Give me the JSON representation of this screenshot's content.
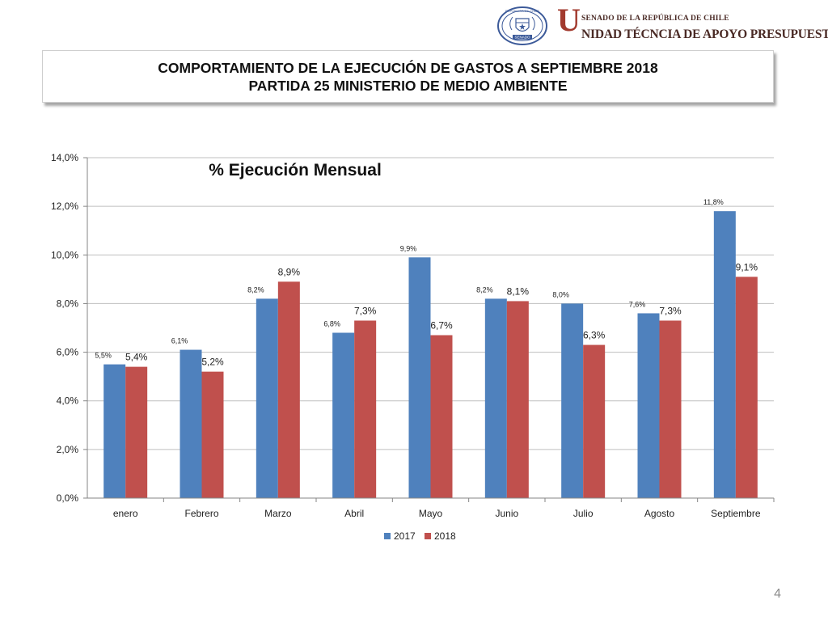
{
  "header": {
    "senado_line": "SENADO DE LA REPÚBLICA DE CHILE",
    "unidad_initial": "U",
    "unidad_rest": "NIDAD TÉCNCIA DE APOYO PRESUPUESTARIO",
    "seal_top_text": "REPÚBLICA DE CHILE",
    "seal_bottom_text": "SENADO"
  },
  "title": {
    "line1": "COMPORTAMIENTO DE LA EJECUCIÓN DE GASTOS A SEPTIEMBRE 2018",
    "line2": "PARTIDA 25 MINISTERIO DE MEDIO AMBIENTE"
  },
  "page_number": "4",
  "colors": {
    "series_2017": "#4f81bd",
    "series_2018": "#c0504d",
    "gridline": "#bfbfbf",
    "seal_blue": "#3c5a99",
    "brand_red": "#a23a2e"
  },
  "chart_data": {
    "type": "bar",
    "title": "% Ejecución Mensual",
    "categories": [
      "enero",
      "Febrero",
      "Marzo",
      "Abril",
      "Mayo",
      "Junio",
      "Julio",
      "Agosto",
      "Septiembre"
    ],
    "series": [
      {
        "name": "2017",
        "values": [
          5.5,
          6.1,
          8.2,
          6.8,
          9.9,
          8.2,
          8.0,
          7.6,
          11.8
        ],
        "labels": [
          "5,5%",
          "6,1%",
          "8,2%",
          "6,8%",
          "9,9%",
          "8,2%",
          "8,0%",
          "7,6%",
          "11,8%"
        ]
      },
      {
        "name": "2018",
        "values": [
          5.4,
          5.2,
          8.9,
          7.3,
          6.7,
          8.1,
          6.3,
          7.3,
          9.1
        ],
        "labels": [
          "5,4%",
          "5,2%",
          "8,9%",
          "7,3%",
          "6,7%",
          "8,1%",
          "6,3%",
          "7,3%",
          "9,1%"
        ]
      }
    ],
    "ylim": [
      0,
      14
    ],
    "yticks": [
      0,
      2,
      4,
      6,
      8,
      10,
      12,
      14
    ],
    "ytick_labels": [
      "0,0%",
      "2,0%",
      "4,0%",
      "6,0%",
      "8,0%",
      "10,0%",
      "12,0%",
      "14,0%"
    ],
    "grid": true,
    "legend": "bottom"
  }
}
